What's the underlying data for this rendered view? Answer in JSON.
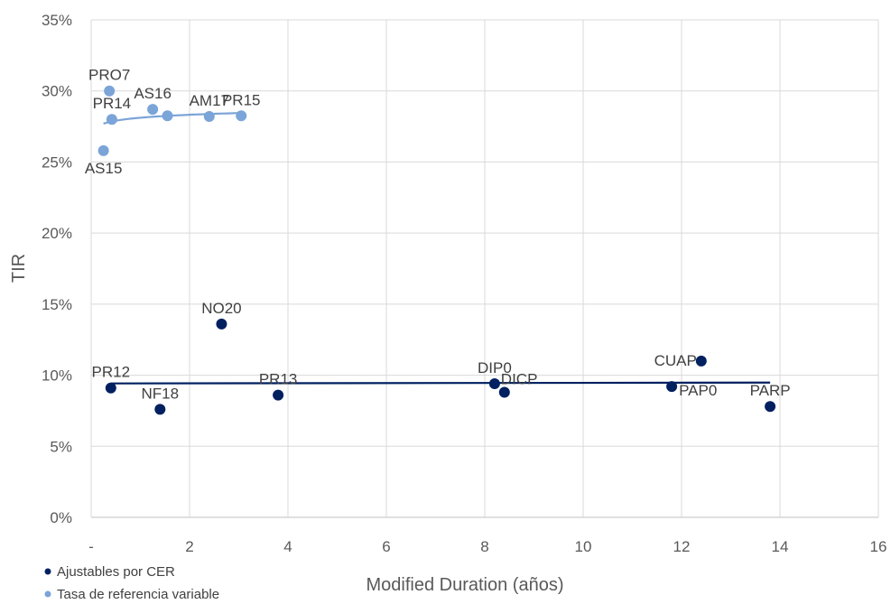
{
  "chart_data": {
    "type": "scatter",
    "xlabel": "Modified Duration (años)",
    "ylabel": "TIR",
    "xlim": [
      0,
      16
    ],
    "ylim": [
      0,
      0.35
    ],
    "x_ticks": [
      {
        "value": 0,
        "label": "-"
      },
      {
        "value": 2,
        "label": "2"
      },
      {
        "value": 4,
        "label": "4"
      },
      {
        "value": 6,
        "label": "6"
      },
      {
        "value": 8,
        "label": "8"
      },
      {
        "value": 10,
        "label": "10"
      },
      {
        "value": 12,
        "label": "12"
      },
      {
        "value": 14,
        "label": "14"
      },
      {
        "value": 16,
        "label": "16"
      }
    ],
    "y_ticks": [
      {
        "value": 0,
        "label": "0%"
      },
      {
        "value": 0.05,
        "label": "5%"
      },
      {
        "value": 0.1,
        "label": "10%"
      },
      {
        "value": 0.15,
        "label": "15%"
      },
      {
        "value": 0.2,
        "label": "20%"
      },
      {
        "value": 0.25,
        "label": "25%"
      },
      {
        "value": 0.3,
        "label": "30%"
      },
      {
        "value": 0.35,
        "label": "35%"
      }
    ],
    "grid": true,
    "legend_position": "bottom-left",
    "series": [
      {
        "name": "Ajustables por CER",
        "color": "#002060",
        "points": [
          {
            "label": "PR12",
            "x": 0.4,
            "y": 0.091,
            "label_pos": "above"
          },
          {
            "label": "NF18",
            "x": 1.4,
            "y": 0.076,
            "label_pos": "above"
          },
          {
            "label": "NO20",
            "x": 2.65,
            "y": 0.136,
            "label_pos": "above"
          },
          {
            "label": "PR13",
            "x": 3.8,
            "y": 0.086,
            "label_pos": "above"
          },
          {
            "label": "DIP0",
            "x": 8.2,
            "y": 0.094,
            "label_pos": "above"
          },
          {
            "label": "DICP",
            "x": 8.4,
            "y": 0.088,
            "label_pos": "above-right"
          },
          {
            "label": "PAP0",
            "x": 11.8,
            "y": 0.092,
            "label_pos": "right"
          },
          {
            "label": "CUAP",
            "x": 12.4,
            "y": 0.11,
            "label_pos": "left"
          },
          {
            "label": "PARP",
            "x": 13.8,
            "y": 0.078,
            "label_pos": "above"
          }
        ],
        "trendline": {
          "type": "linear",
          "x_start": 0.4,
          "y_start": 0.0942,
          "x_end": 13.8,
          "y_end": 0.0948
        }
      },
      {
        "name": "Tasa de referencia variable",
        "color": "#7BA4D8",
        "points": [
          {
            "label": "PRO7",
            "x": 0.37,
            "y": 0.3,
            "label_pos": "above"
          },
          {
            "label": "PR14",
            "x": 0.42,
            "y": 0.28,
            "label_pos": "above"
          },
          {
            "label": "AS15",
            "x": 0.25,
            "y": 0.258,
            "label_pos": "below"
          },
          {
            "label": "AS16",
            "x": 1.25,
            "y": 0.287,
            "label_pos": "above"
          },
          {
            "label": "",
            "x": 1.55,
            "y": 0.2825,
            "label_pos": "none"
          },
          {
            "label": "AM17",
            "x": 2.4,
            "y": 0.282,
            "label_pos": "above"
          },
          {
            "label": "PR15",
            "x": 3.05,
            "y": 0.2825,
            "label_pos": "above"
          }
        ],
        "trendline": {
          "type": "logarithmic",
          "x_start": 0.25,
          "x_end": 3.05,
          "y_start": 0.277,
          "y_end": 0.2845
        }
      }
    ]
  }
}
